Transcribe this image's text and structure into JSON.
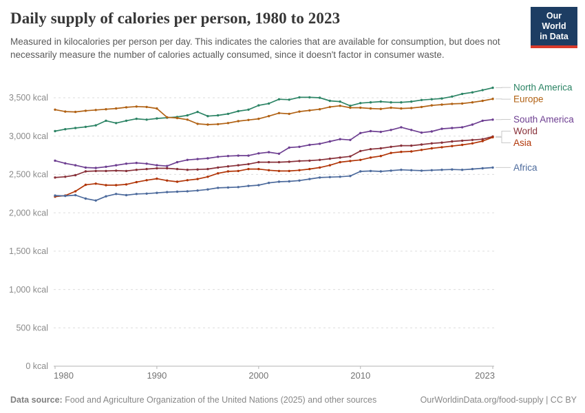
{
  "header": {
    "title": "Daily supply of calories per person, 1980 to 2023",
    "subtitle": "Measured in kilocalories per person per day. This indicates the calories that are available for consumption, but does not necessarily measure the number of calories actually consumed, since it doesn't factor in consumer waste.",
    "logo": {
      "line1": "Our World",
      "line2": "in Data"
    }
  },
  "footer": {
    "source_label": "Data source:",
    "source_text": " Food and Agriculture Organization of the United Nations (2025) and other sources",
    "right_text": "OurWorldinData.org/food-supply | CC BY"
  },
  "colors": {
    "logo_bg": "#1d3d63",
    "logo_underline": "#d93a2b",
    "gridline": "#dcdcdc",
    "axis_line": "#b3b3b3",
    "axis_text": "#8a8a8a",
    "x_axis_text": "#737373",
    "legend_connector": "#c9c9c9"
  },
  "chart_data": {
    "type": "line",
    "title": "Daily supply of calories per person, 1980 to 2023",
    "unit": "kcal",
    "xlim": [
      1980,
      2023
    ],
    "ylim": [
      0,
      3500
    ],
    "grid": "horizontal-dashed",
    "legend_position": "right-of-line-ends",
    "x_ticks": [
      1980,
      1990,
      2000,
      2010,
      2023
    ],
    "y_ticks": [
      0,
      500,
      1000,
      1500,
      2000,
      2500,
      3000,
      3500
    ],
    "y_tick_suffix": " kcal",
    "x": [
      1980,
      1981,
      1982,
      1983,
      1984,
      1985,
      1986,
      1987,
      1988,
      1989,
      1990,
      1991,
      1992,
      1993,
      1994,
      1995,
      1996,
      1997,
      1998,
      1999,
      2000,
      2001,
      2002,
      2003,
      2004,
      2005,
      2006,
      2007,
      2008,
      2009,
      2010,
      2011,
      2012,
      2013,
      2014,
      2015,
      2016,
      2017,
      2018,
      2019,
      2020,
      2021,
      2022,
      2023
    ],
    "series": [
      {
        "name": "North America",
        "color": "#2C8465",
        "values": [
          3065,
          3090,
          3105,
          3120,
          3140,
          3200,
          3170,
          3200,
          3225,
          3215,
          3230,
          3240,
          3250,
          3270,
          3315,
          3260,
          3270,
          3290,
          3325,
          3345,
          3400,
          3425,
          3480,
          3475,
          3505,
          3505,
          3500,
          3460,
          3450,
          3395,
          3430,
          3440,
          3450,
          3440,
          3440,
          3450,
          3470,
          3480,
          3490,
          3515,
          3550,
          3570,
          3600,
          3630
        ]
      },
      {
        "name": "Europe",
        "color": "#B16214",
        "values": [
          3345,
          3320,
          3315,
          3330,
          3340,
          3350,
          3360,
          3375,
          3385,
          3380,
          3360,
          3245,
          3235,
          3215,
          3160,
          3150,
          3155,
          3170,
          3195,
          3210,
          3225,
          3260,
          3300,
          3290,
          3320,
          3335,
          3350,
          3380,
          3395,
          3370,
          3370,
          3360,
          3355,
          3370,
          3360,
          3365,
          3380,
          3400,
          3410,
          3420,
          3425,
          3440,
          3460,
          3485
        ]
      },
      {
        "name": "South America",
        "color": "#6D3E91",
        "values": [
          2680,
          2645,
          2620,
          2590,
          2585,
          2600,
          2620,
          2640,
          2650,
          2640,
          2620,
          2610,
          2660,
          2690,
          2700,
          2710,
          2730,
          2740,
          2745,
          2745,
          2775,
          2790,
          2770,
          2850,
          2860,
          2885,
          2900,
          2930,
          2960,
          2950,
          3040,
          3065,
          3055,
          3080,
          3115,
          3080,
          3045,
          3060,
          3095,
          3105,
          3115,
          3150,
          3200,
          3215
        ]
      },
      {
        "name": "World",
        "color": "#883039",
        "values": [
          2460,
          2470,
          2490,
          2540,
          2545,
          2545,
          2550,
          2545,
          2560,
          2570,
          2580,
          2580,
          2570,
          2560,
          2565,
          2570,
          2590,
          2605,
          2620,
          2635,
          2660,
          2660,
          2660,
          2665,
          2675,
          2680,
          2690,
          2705,
          2720,
          2735,
          2805,
          2830,
          2840,
          2860,
          2875,
          2875,
          2890,
          2905,
          2915,
          2930,
          2940,
          2950,
          2960,
          2995
        ]
      },
      {
        "name": "Asia",
        "color": "#B13507",
        "values": [
          2210,
          2225,
          2280,
          2365,
          2380,
          2360,
          2360,
          2370,
          2400,
          2425,
          2445,
          2420,
          2405,
          2425,
          2440,
          2470,
          2515,
          2540,
          2545,
          2570,
          2570,
          2555,
          2545,
          2545,
          2555,
          2570,
          2590,
          2620,
          2660,
          2675,
          2690,
          2720,
          2740,
          2780,
          2795,
          2800,
          2820,
          2840,
          2855,
          2870,
          2885,
          2905,
          2935,
          2985
        ]
      },
      {
        "name": "Africa",
        "color": "#4C6A9C",
        "values": [
          2225,
          2220,
          2230,
          2185,
          2160,
          2215,
          2245,
          2230,
          2245,
          2250,
          2260,
          2270,
          2275,
          2280,
          2290,
          2305,
          2325,
          2330,
          2335,
          2350,
          2360,
          2390,
          2405,
          2410,
          2420,
          2440,
          2460,
          2465,
          2470,
          2480,
          2540,
          2545,
          2540,
          2550,
          2560,
          2555,
          2550,
          2555,
          2560,
          2565,
          2560,
          2570,
          2580,
          2590
        ]
      }
    ]
  }
}
